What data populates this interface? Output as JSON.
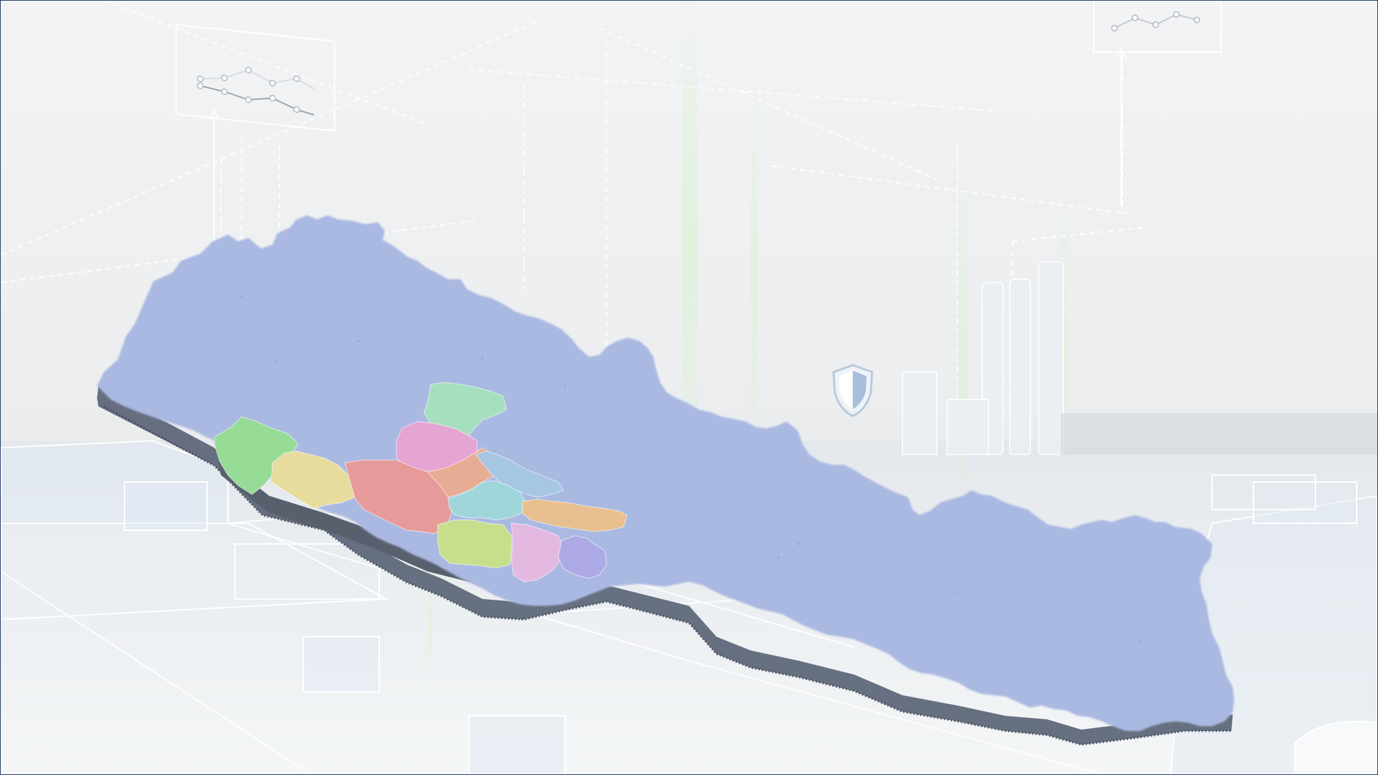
{
  "scene": {
    "background_theme": "industrial-digital-twin",
    "frame_color": "#1f3a66",
    "glow_color": "#b6f0a6"
  },
  "map": {
    "base_color": "#aab9e2",
    "extrusion_color": "#5a6478",
    "highlighted_regions": [
      {
        "id": "region-1",
        "color": "#a5dfbd"
      },
      {
        "id": "region-2",
        "color": "#e4a5d3"
      },
      {
        "id": "region-3",
        "color": "#96db96"
      },
      {
        "id": "region-4",
        "color": "#e6dc9e"
      },
      {
        "id": "region-5",
        "color": "#e79a9a"
      },
      {
        "id": "region-6",
        "color": "#e7ac94"
      },
      {
        "id": "region-7",
        "color": "#a6c6e3"
      },
      {
        "id": "region-8",
        "color": "#9fd6dc"
      },
      {
        "id": "region-9",
        "color": "#e8bf8e"
      },
      {
        "id": "region-10",
        "color": "#c7df8d"
      },
      {
        "id": "region-11",
        "color": "#e3b9e1"
      },
      {
        "id": "region-12",
        "color": "#ada9e4"
      }
    ]
  }
}
